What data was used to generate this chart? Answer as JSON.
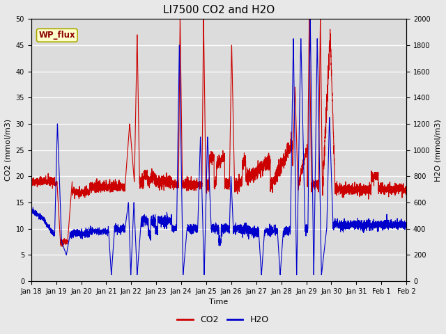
{
  "title": "LI7500 CO2 and H2O",
  "xlabel": "Time",
  "ylabel_left": "CO2 (mmol/m3)",
  "ylabel_right": "H2O (mmol/m3)",
  "co2_color": "#cc0000",
  "h2o_color": "#0000cc",
  "ylim_left": [
    0,
    50
  ],
  "ylim_right": [
    0,
    2000
  ],
  "yticks_left": [
    0,
    5,
    10,
    15,
    20,
    25,
    30,
    35,
    40,
    45,
    50
  ],
  "yticks_right": [
    0,
    200,
    400,
    600,
    800,
    1000,
    1200,
    1400,
    1600,
    1800,
    2000
  ],
  "xtick_labels": [
    "Jan 18",
    "Jan 19",
    "Jan 20",
    "Jan 21",
    "Jan 22",
    "Jan 23",
    "Jan 24",
    "Jan 25",
    "Jan 26",
    "Jan 27",
    "Jan 28",
    "Jan 29",
    "Jan 30",
    "Jan 31",
    "Feb 1",
    "Feb 2"
  ],
  "watermark_text": "WP_flux",
  "watermark_color": "#8B0000",
  "watermark_bg": "#ffffcc",
  "watermark_edge": "#aaaa00",
  "background_color": "#dcdcdc",
  "fig_bg_color": "#e8e8e8",
  "linewidth_co2": 0.8,
  "linewidth_h2o": 0.8,
  "title_fontsize": 11,
  "axis_fontsize": 8,
  "tick_fontsize": 7
}
